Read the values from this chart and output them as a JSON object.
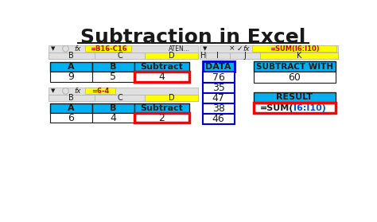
{
  "title": "Subtraction in Excel",
  "title_fontsize": 18,
  "title_fontweight": "bold",
  "bg_color": "#ffffff",
  "cyan_color": "#00b0f0",
  "yellow_color": "#ffff00",
  "red_border_color": "#ff0000",
  "blue_border_color": "#0000cd",
  "dark_text": "#1a1a1a",
  "lgray": "#e0e0e0",
  "mgray": "#b0b0b0",
  "formula_bar1": "=B16-C16",
  "formula_bar2": "=6-4",
  "formula_bar3": "=SUM(I6:I10)",
  "table1": {
    "headers": [
      "A",
      "B",
      "Subtract"
    ],
    "row": [
      "9",
      "5",
      "4"
    ]
  },
  "table2": {
    "headers": [
      "A",
      "B",
      "Subtract"
    ],
    "row": [
      "6",
      "4",
      "2"
    ]
  },
  "data_col": {
    "header": "DATA",
    "values": [
      "76",
      "35",
      "47",
      "38",
      "46"
    ]
  },
  "subtract_with": {
    "header": "SUBTRACT WITH",
    "value": "60"
  },
  "result": {
    "header": "RESULT",
    "value": "=SUM(I6:I10)"
  }
}
